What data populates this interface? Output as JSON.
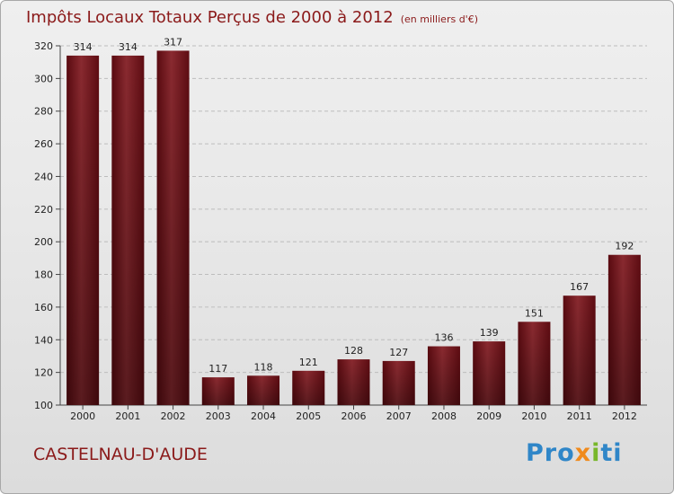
{
  "chart_data": {
    "type": "bar",
    "title": "Impôts Locaux Totaux Perçus de 2000 à 2012",
    "subtitle": "(en milliers d'€)",
    "categories": [
      "2000",
      "2001",
      "2002",
      "2003",
      "2004",
      "2005",
      "2006",
      "2007",
      "2008",
      "2009",
      "2010",
      "2011",
      "2012"
    ],
    "values": [
      314,
      314,
      317,
      117,
      118,
      121,
      128,
      127,
      136,
      139,
      151,
      167,
      192
    ],
    "ylim": [
      100,
      320
    ],
    "yticks": [
      100,
      120,
      140,
      160,
      180,
      200,
      220,
      240,
      260,
      280,
      300,
      320
    ],
    "grid": true,
    "bar_color": "#7a1a1f",
    "xlabel": "",
    "ylabel": ""
  },
  "footer": {
    "city": "CASTELNAU-D'AUDE",
    "logo": {
      "p1": "Pro",
      "p2": "x",
      "p3": "i",
      "p4": "ti"
    }
  }
}
